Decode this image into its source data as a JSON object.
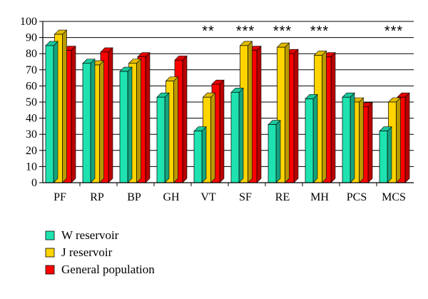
{
  "chart_data": {
    "type": "bar",
    "categories": [
      "PF",
      "RP",
      "BP",
      "GH",
      "VT",
      "SF",
      "RE",
      "MH",
      "PCS",
      "MCS"
    ],
    "series": [
      {
        "name": "W reservoir",
        "color": "#1ee3b0",
        "values": [
          85,
          74,
          69,
          53,
          32,
          56,
          36,
          52,
          53,
          32
        ]
      },
      {
        "name": "J reservoir",
        "color": "#ffd400",
        "values": [
          92,
          73,
          74,
          63,
          53,
          85,
          84,
          79,
          50,
          50
        ]
      },
      {
        "name": "General population",
        "color": "#ff0000",
        "values": [
          82,
          81,
          78,
          76,
          61,
          82,
          80,
          78,
          47,
          53
        ]
      }
    ],
    "significance": [
      "",
      "",
      "",
      "",
      "**",
      "***",
      "***",
      "***",
      "",
      "***"
    ],
    "yticks": [
      0,
      10,
      20,
      30,
      40,
      50,
      60,
      70,
      80,
      90,
      100
    ],
    "ylim": [
      0,
      100
    ],
    "grid": true,
    "legend_position": "bottom-left",
    "title": "",
    "xlabel": "",
    "ylabel": ""
  }
}
